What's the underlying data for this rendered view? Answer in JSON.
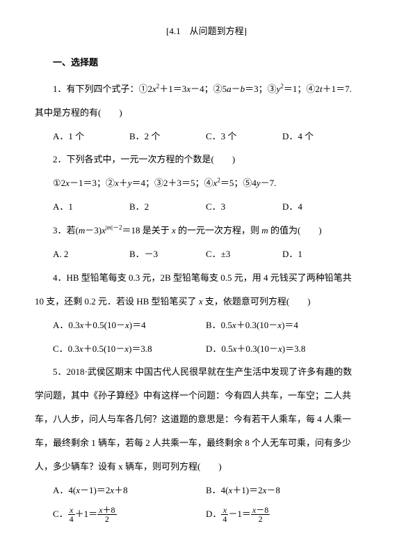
{
  "title": "[4.1　从问题到方程]",
  "section": "一、选择题",
  "q1": {
    "stem_pre": "1．有下列四个式子：①2",
    "stem_mid1": "＋1＝3",
    "stem_mid2": "－4；②5",
    "stem_mid3": "－",
    "stem_mid4": "＝3；③",
    "stem_mid5": "＝1；④2",
    "stem_mid6": "＋1＝7.",
    "stem_line2": "其中是方程的有(　　)",
    "optA": "A．1 个",
    "optB": "B．2 个",
    "optC": "C．3 个",
    "optD": "D．4 个"
  },
  "q2": {
    "stem": "2．下列各式中，一元一次方程的个数是(　　)",
    "expr": "①2x－1＝3；②x＋y＝4；③2＋3＝5；④x²＝5；⑤4y－7.",
    "optA": "A．1",
    "optB": "B．2",
    "optC": "C．3",
    "optD": "D．4"
  },
  "q3": {
    "stem_pre": "3．若(",
    "stem_mid1": "－3)",
    "stem_mid2": "＝18 是关于 ",
    "stem_mid3": " 的一元一次方程，则 ",
    "stem_mid4": " 的值为(　　)",
    "optA": "A. 2",
    "optB": "B．－3",
    "optC": "C．±3",
    "optD": "D．1"
  },
  "q4": {
    "line1": "4．HB 型铅笔每支 0.3 元，2B 型铅笔每支 0.5 元，用 4 元钱买了两种铅笔共",
    "line2": "10 支，还剩 0.2 元．若设 HB 型铅笔买了 x 支，依题意可列方程(　　)",
    "optA": "A．0.3x＋0.5(10－x)＝4",
    "optB": "B．0.5x＋0.3(10－x)＝4",
    "optC": "C．0.3x＋0.5(10－x)＝3.8",
    "optD": "D．0.5x＋0.3(10－x)＝3.8"
  },
  "q5": {
    "line1": "5．2018·武侯区期末 中国古代人民很早就在生产生活中发现了许多有趣的数",
    "line2": "学问题，其中《孙子算经》中有这样一个问题：今有四人共车，一车空；二人共",
    "line3": "车，八人步，问人与车各几何？这道题的意思是：今有若干人乘车，每 4 人乘一",
    "line4": "车，最终剩余 1 辆车，若每 2 人共乘一车，最终剩余 8 个人无车可乘，问有多少",
    "line5": "人，多少辆车？设有 x 辆车，则可列方程(　　)",
    "optA": "A．4(x－1)＝2x＋8",
    "optB": "B．4(x＋1)＝2x－8",
    "optC_pre": "C．",
    "optC_plus": "＋1＝",
    "optD_pre": "D．",
    "optD_minus": "－1＝",
    "frac_x": "x",
    "frac_4": "4",
    "frac_xp8": "x＋8",
    "frac_xm8": "x－8",
    "frac_2": "2"
  }
}
